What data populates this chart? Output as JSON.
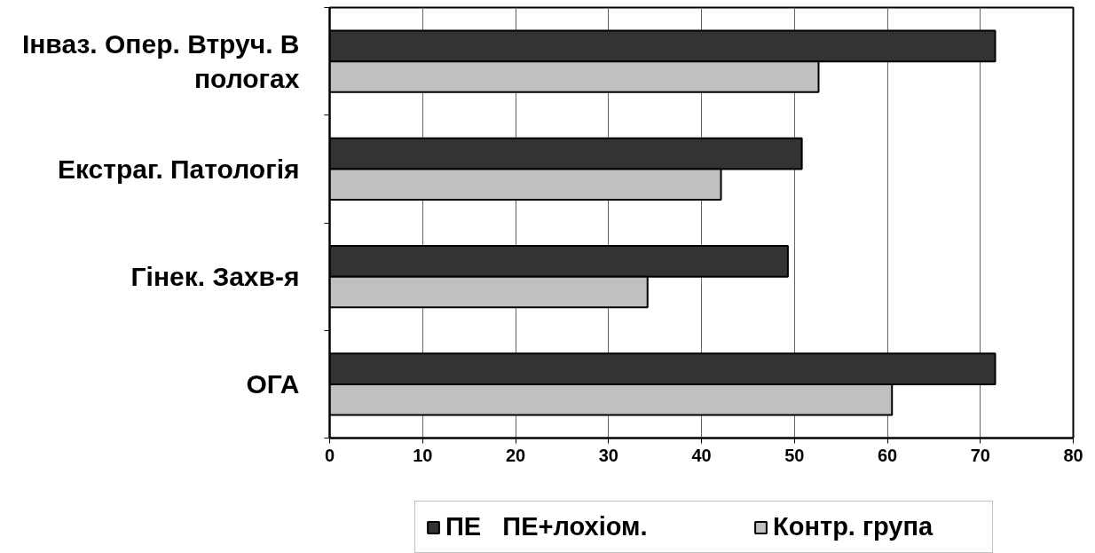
{
  "chart_data": {
    "type": "bar",
    "orientation": "horizontal",
    "categories": [
      "Інваз. Опер. Втруч. В пологах",
      "Екстраг. Патологія",
      "Гінек. Захв-я",
      "ОГА"
    ],
    "series": [
      {
        "name": "ПЕ   ПЕ+лохіом.",
        "color": "#333333",
        "values": [
          71.6,
          50.8,
          49.3,
          71.6
        ]
      },
      {
        "name": "Контр. група",
        "color": "#c0c0c0",
        "values": [
          52.6,
          42.1,
          34.2,
          60.5
        ]
      }
    ],
    "xlim": [
      0,
      80
    ],
    "xticks": [
      0,
      10,
      20,
      30,
      40,
      50,
      60,
      70,
      80
    ],
    "grid": "x",
    "legend": "bottom"
  }
}
